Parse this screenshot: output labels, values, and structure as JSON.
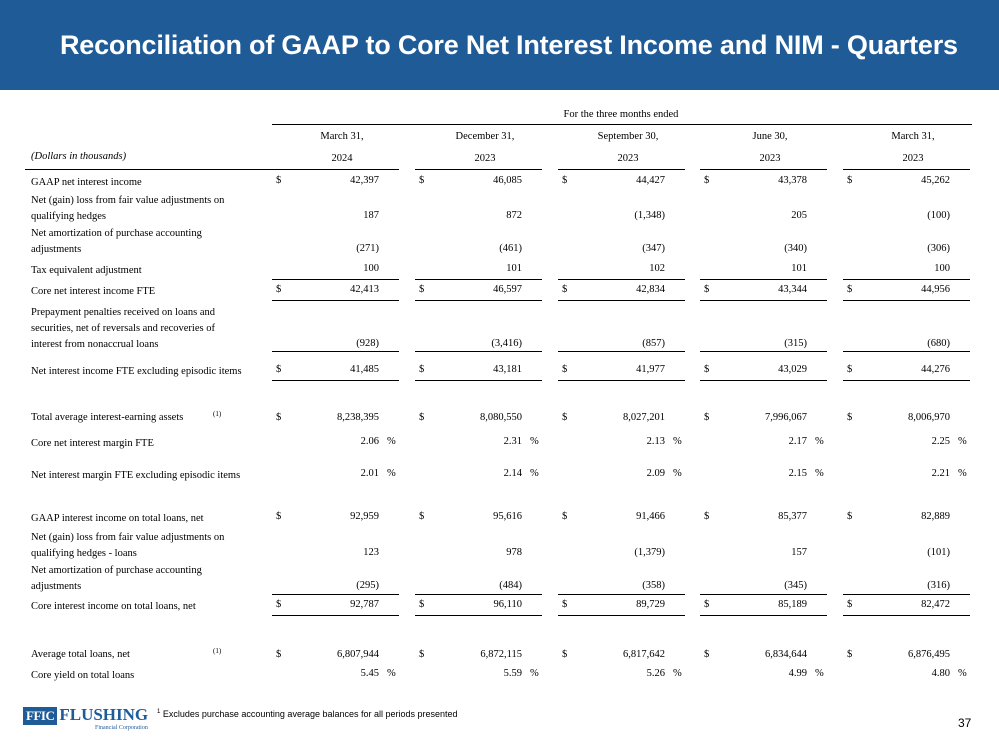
{
  "title": "Reconciliation of GAAP to Core Net Interest Income and NIM - Quarters",
  "table": {
    "period_header": "For the three months ended",
    "units_label": "(Dollars in thousands)",
    "columns": [
      {
        "date": "March 31,",
        "year": "2024"
      },
      {
        "date": "December 31,",
        "year": "2023"
      },
      {
        "date": "September 30,",
        "year": "2023"
      },
      {
        "date": "June 30,",
        "year": "2023"
      },
      {
        "date": "March 31,",
        "year": "2023"
      }
    ],
    "rows": [
      {
        "label": [
          "GAAP net interest income"
        ],
        "cur": "$",
        "values": [
          "42,397",
          "46,085",
          "44,427",
          "43,378",
          "45,262"
        ]
      },
      {
        "label": [
          "Net (gain) loss from fair value adjustments on",
          "qualifying hedges"
        ],
        "values": [
          "187",
          "872",
          "(1,348)",
          "205",
          "(100)"
        ]
      },
      {
        "label": [
          "Net amortization of purchase accounting",
          "adjustments"
        ],
        "values": [
          "(271)",
          "(461)",
          "(347)",
          "(340)",
          "(306)"
        ]
      },
      {
        "label": [
          "Tax equivalent adjustment"
        ],
        "values": [
          "100",
          "101",
          "102",
          "101",
          "100"
        ]
      },
      {
        "label": [
          "Core net interest income FTE"
        ],
        "cur": "$",
        "values": [
          "42,413",
          "46,597",
          "42,834",
          "43,344",
          "44,956"
        ]
      },
      {
        "label": [
          "Prepayment penalties received on loans and",
          "securities, net of reversals and recoveries of",
          "interest from nonaccrual loans"
        ],
        "values": [
          "(928)",
          "(3,416)",
          "(857)",
          "(315)",
          "(680)"
        ]
      },
      {
        "label": [
          "Net interest income FTE excluding episodic items"
        ],
        "cur": "$",
        "values": [
          "41,485",
          "43,181",
          "41,977",
          "43,029",
          "44,276"
        ]
      },
      {
        "label": [
          "Total average interest-earning assets"
        ],
        "sup": "(1)",
        "cur": "$",
        "values": [
          "8,238,395",
          "8,080,550",
          "8,027,201",
          "7,996,067",
          "8,006,970"
        ]
      },
      {
        "label": [
          "Core net interest margin FTE"
        ],
        "pct": "%",
        "values": [
          "2.06",
          "2.31",
          "2.13",
          "2.17",
          "2.25"
        ]
      },
      {
        "label": [
          "Net interest margin FTE excluding episodic items"
        ],
        "pct": "%",
        "values": [
          "2.01",
          "2.14",
          "2.09",
          "2.15",
          "2.21"
        ]
      },
      {
        "label": [
          "GAAP interest income on total loans, net"
        ],
        "cur": "$",
        "values": [
          "92,959",
          "95,616",
          "91,466",
          "85,377",
          "82,889"
        ]
      },
      {
        "label": [
          "Net (gain) loss from fair value adjustments on",
          "qualifying hedges - loans"
        ],
        "values": [
          "123",
          "978",
          "(1,379)",
          "157",
          "(101)"
        ]
      },
      {
        "label": [
          "Net amortization of purchase accounting",
          "adjustments"
        ],
        "values": [
          "(295)",
          "(484)",
          "(358)",
          "(345)",
          "(316)"
        ]
      },
      {
        "label": [
          "Core interest income on total loans, net"
        ],
        "cur": "$",
        "values": [
          "92,787",
          "96,110",
          "89,729",
          "85,189",
          "82,472"
        ]
      },
      {
        "label": [
          "Average total loans, net"
        ],
        "sup": "(1)",
        "cur": "$",
        "values": [
          "6,807,944",
          "6,872,115",
          "6,817,642",
          "6,834,644",
          "6,876,495"
        ]
      },
      {
        "label": [
          "Core yield on total loans"
        ],
        "pct": "%",
        "values": [
          "5.45",
          "5.59",
          "5.26",
          "4.99",
          "4.80"
        ]
      }
    ]
  },
  "footer": {
    "logo_box": "FFIC",
    "logo_text": "FLUSHING",
    "logo_sub": "Financial Corporation",
    "footnote_mark": "1",
    "footnote": "Excludes purchase accounting average balances for all periods presented",
    "page_number": "37"
  }
}
